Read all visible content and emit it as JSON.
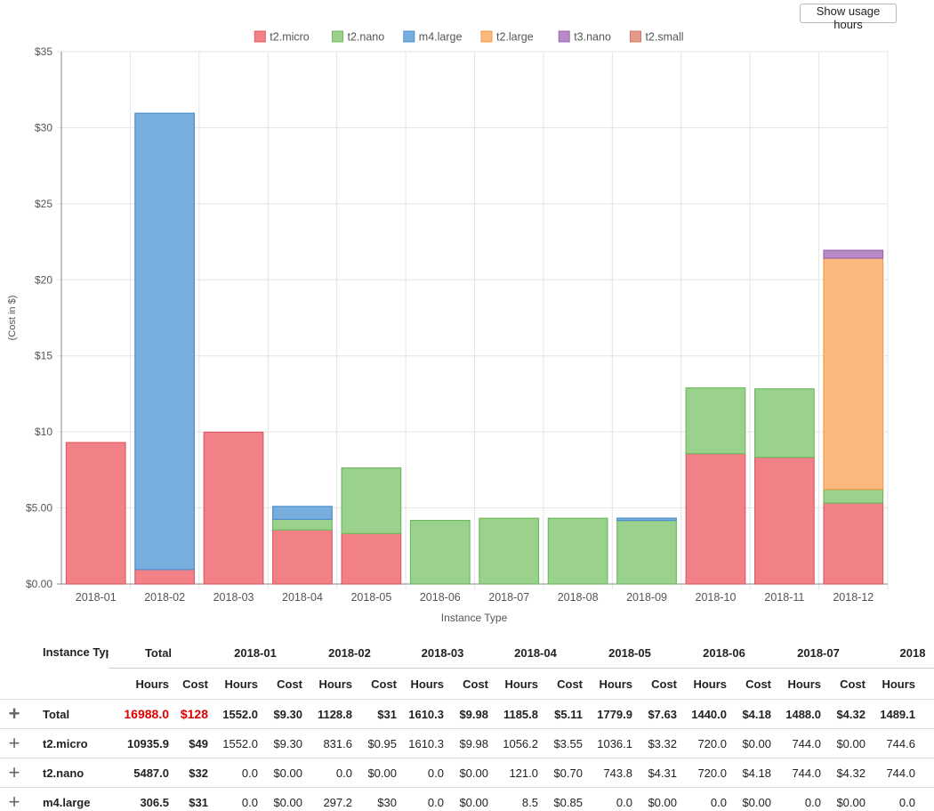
{
  "controls": {
    "usage_button_label": "Show usage hours"
  },
  "chart_data": {
    "type": "bar",
    "stacked": true,
    "categories": [
      "2018-01",
      "2018-02",
      "2018-03",
      "2018-04",
      "2018-05",
      "2018-06",
      "2018-07",
      "2018-08",
      "2018-09",
      "2018-10",
      "2018-11",
      "2018-12"
    ],
    "series": [
      {
        "name": "t2.micro",
        "color": "#f28187",
        "stroke": "#e05c63",
        "values": [
          9.3,
          0.95,
          9.98,
          3.55,
          3.32,
          0,
          0,
          0,
          0,
          8.57,
          8.33,
          5.32
        ]
      },
      {
        "name": "t2.nano",
        "color": "#9ad28d",
        "stroke": "#6fba5e",
        "values": [
          0,
          0,
          0,
          0.7,
          4.31,
          4.18,
          4.32,
          4.32,
          4.18,
          4.32,
          4.5,
          0.9
        ]
      },
      {
        "name": "m4.large",
        "color": "#78aedd",
        "stroke": "#4f90cc",
        "values": [
          0,
          30,
          0,
          0.85,
          0,
          0,
          0,
          0,
          0.15,
          0,
          0,
          0
        ]
      },
      {
        "name": "t2.large",
        "color": "#fcb87d",
        "stroke": "#f49a4c",
        "values": [
          0,
          0,
          0,
          0,
          0,
          0,
          0,
          0,
          0,
          0,
          0,
          15.2
        ]
      },
      {
        "name": "t3.nano",
        "color": "#b88bc6",
        "stroke": "#9a68ad",
        "values": [
          0,
          0,
          0,
          0,
          0,
          0,
          0,
          0,
          0,
          0,
          0,
          0.52
        ]
      },
      {
        "name": "t2.small",
        "color": "#e39a8b",
        "stroke": "#cf7867",
        "values": [
          0,
          0,
          0,
          0,
          0,
          0,
          0,
          0,
          0,
          0,
          0,
          0
        ]
      }
    ],
    "ylim": [
      0,
      35
    ],
    "yticks": [
      0,
      5,
      10,
      15,
      20,
      25,
      30,
      35
    ],
    "ytick_labels": [
      "$0.00",
      "$5.00",
      "$10",
      "$15",
      "$20",
      "$25",
      "$30",
      "$35"
    ],
    "ylabel": "(Cost in $)",
    "xlabel": "Instance Type",
    "legend": "top-center",
    "grid": true
  },
  "table": {
    "instance_header": "Instance Type",
    "total_header": "Total",
    "hours_label": "Hours",
    "cost_label": "Cost",
    "months": [
      "2018-01",
      "2018-02",
      "2018-03",
      "2018-04",
      "2018-05",
      "2018-06",
      "2018-07",
      "2018"
    ],
    "rows": [
      {
        "name": "Total",
        "total_hours": "16988.0",
        "total_cost": "$128",
        "cells": [
          [
            "1552.0",
            "$9.30"
          ],
          [
            "1128.8",
            "$31"
          ],
          [
            "1610.3",
            "$9.98"
          ],
          [
            "1185.8",
            "$5.11"
          ],
          [
            "1779.9",
            "$7.63"
          ],
          [
            "1440.0",
            "$4.18"
          ],
          [
            "1488.0",
            "$4.32"
          ],
          [
            "1489.1",
            ""
          ]
        ]
      },
      {
        "name": "t2.micro",
        "total_hours": "10935.9",
        "total_cost": "$49",
        "cells": [
          [
            "1552.0",
            "$9.30"
          ],
          [
            "831.6",
            "$0.95"
          ],
          [
            "1610.3",
            "$9.98"
          ],
          [
            "1056.2",
            "$3.55"
          ],
          [
            "1036.1",
            "$3.32"
          ],
          [
            "720.0",
            "$0.00"
          ],
          [
            "744.0",
            "$0.00"
          ],
          [
            "744.6",
            ""
          ]
        ]
      },
      {
        "name": "t2.nano",
        "total_hours": "5487.0",
        "total_cost": "$32",
        "cells": [
          [
            "0.0",
            "$0.00"
          ],
          [
            "0.0",
            "$0.00"
          ],
          [
            "0.0",
            "$0.00"
          ],
          [
            "121.0",
            "$0.70"
          ],
          [
            "743.8",
            "$4.31"
          ],
          [
            "720.0",
            "$4.18"
          ],
          [
            "744.0",
            "$4.32"
          ],
          [
            "744.0",
            ""
          ]
        ]
      },
      {
        "name": "m4.large",
        "total_hours": "306.5",
        "total_cost": "$31",
        "cells": [
          [
            "0.0",
            "$0.00"
          ],
          [
            "297.2",
            "$30"
          ],
          [
            "0.0",
            "$0.00"
          ],
          [
            "8.5",
            "$0.85"
          ],
          [
            "0.0",
            "$0.00"
          ],
          [
            "0.0",
            "$0.00"
          ],
          [
            "0.0",
            "$0.00"
          ],
          [
            "0.0",
            ""
          ]
        ]
      }
    ]
  }
}
